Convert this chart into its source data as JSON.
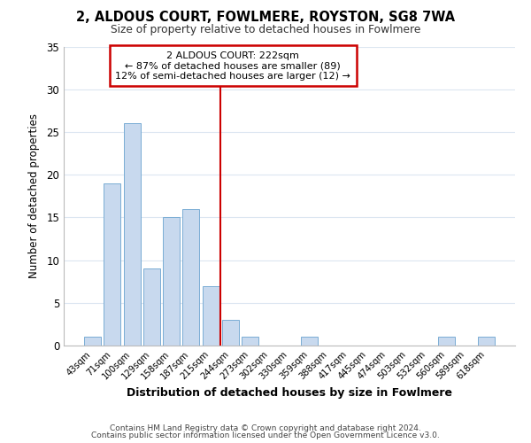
{
  "title": "2, ALDOUS COURT, FOWLMERE, ROYSTON, SG8 7WA",
  "subtitle": "Size of property relative to detached houses in Fowlmere",
  "xlabel": "Distribution of detached houses by size in Fowlmere",
  "ylabel": "Number of detached properties",
  "bar_labels": [
    "43sqm",
    "71sqm",
    "100sqm",
    "129sqm",
    "158sqm",
    "187sqm",
    "215sqm",
    "244sqm",
    "273sqm",
    "302sqm",
    "330sqm",
    "359sqm",
    "388sqm",
    "417sqm",
    "445sqm",
    "474sqm",
    "503sqm",
    "532sqm",
    "560sqm",
    "589sqm",
    "618sqm"
  ],
  "bar_heights": [
    1,
    19,
    26,
    9,
    15,
    16,
    7,
    3,
    1,
    0,
    0,
    1,
    0,
    0,
    0,
    0,
    0,
    0,
    1,
    0,
    1
  ],
  "bar_color": "#c8d9ee",
  "bar_edge_color": "#7aadd4",
  "vline_color": "#cc0000",
  "ylim": [
    0,
    35
  ],
  "yticks": [
    0,
    5,
    10,
    15,
    20,
    25,
    30,
    35
  ],
  "annotation_title": "2 ALDOUS COURT: 222sqm",
  "annotation_line1": "← 87% of detached houses are smaller (89)",
  "annotation_line2": "12% of semi-detached houses are larger (12) →",
  "annotation_box_color": "#ffffff",
  "annotation_box_edge": "#cc0000",
  "footer1": "Contains HM Land Registry data © Crown copyright and database right 2024.",
  "footer2": "Contains public sector information licensed under the Open Government Licence v3.0.",
  "background_color": "#ffffff",
  "grid_color": "#dce6f1"
}
